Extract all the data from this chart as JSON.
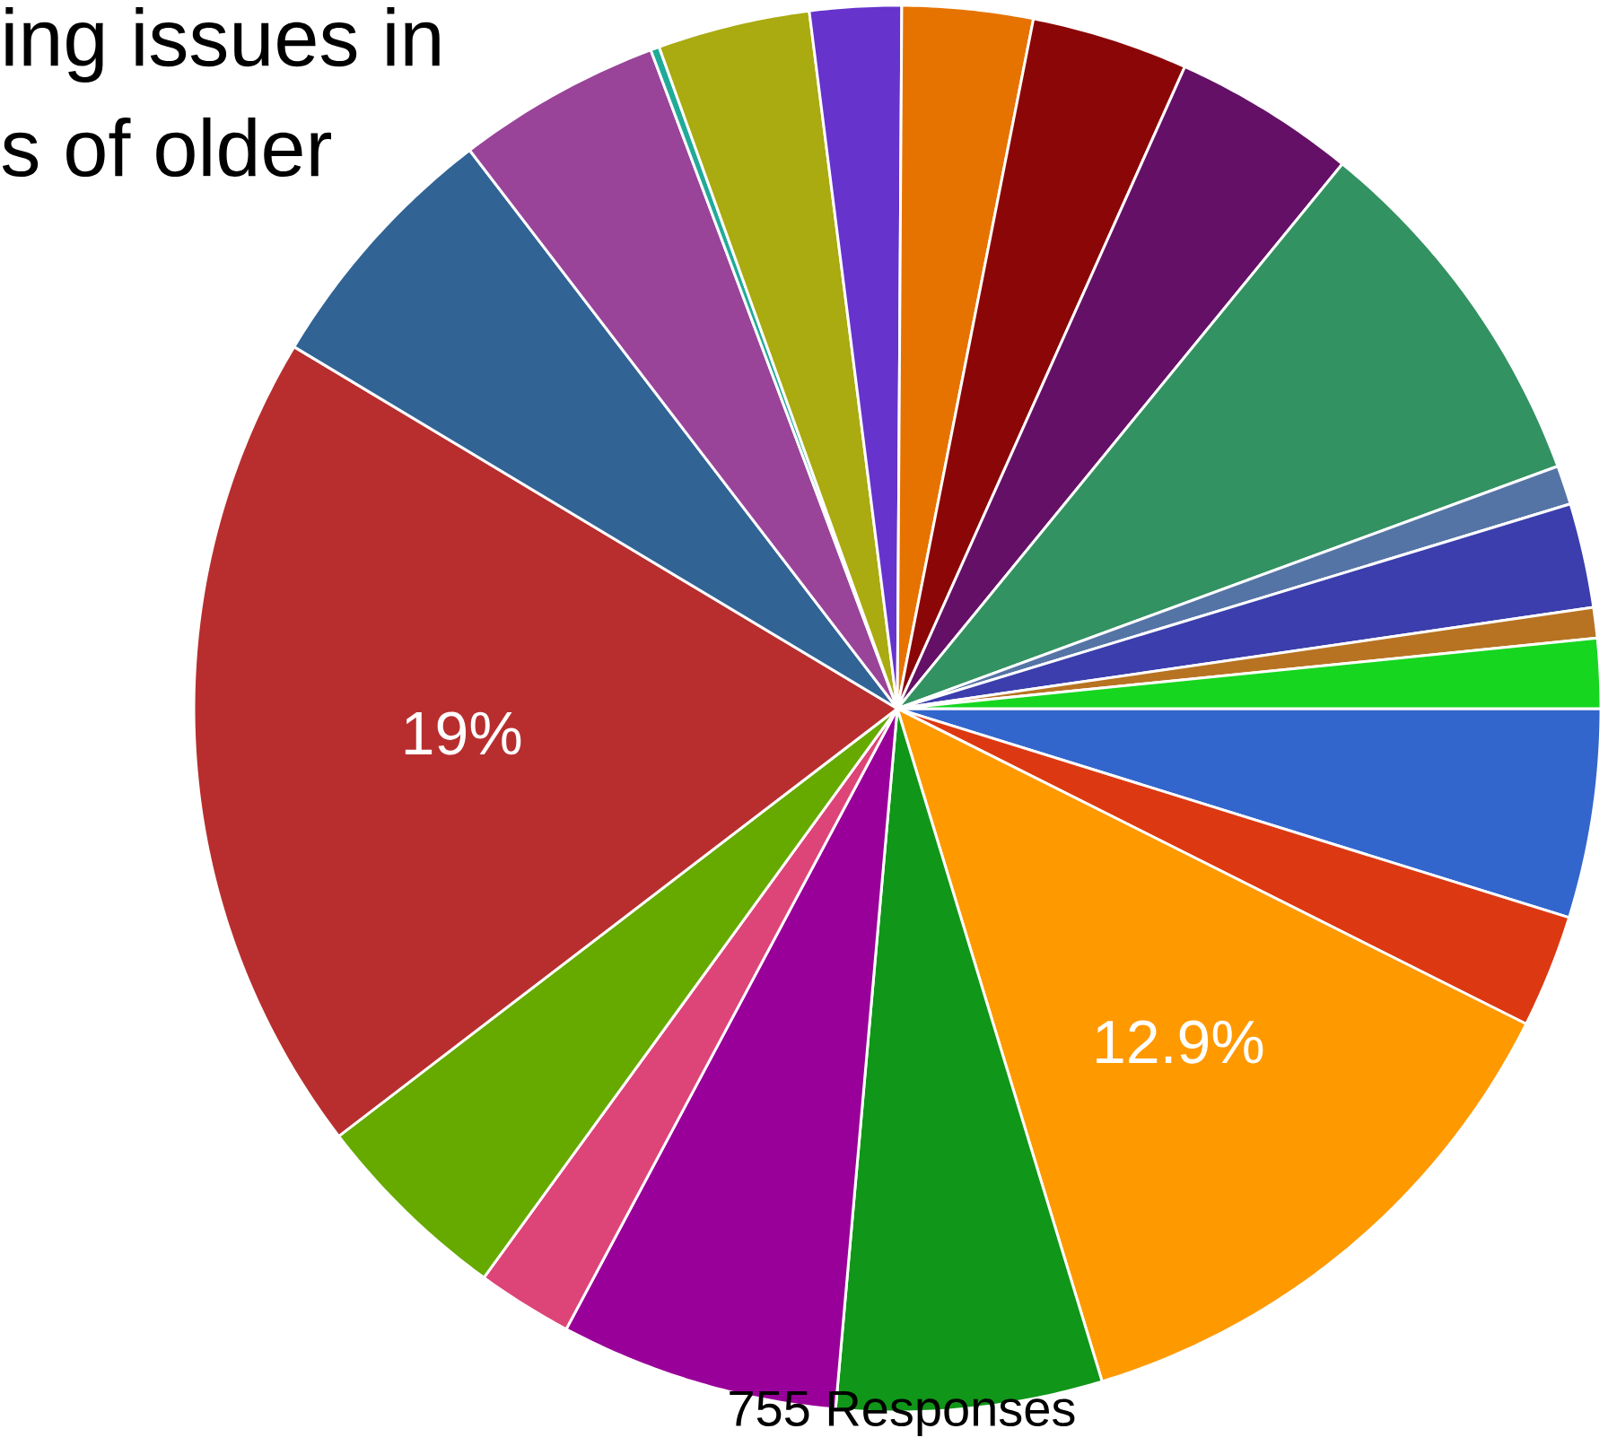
{
  "chart_data": {
    "type": "pie",
    "categories": [
      null,
      null,
      null,
      null,
      null,
      null,
      null,
      null,
      null,
      null,
      null,
      null,
      null,
      null,
      null,
      null,
      null,
      null,
      null,
      null,
      null
    ],
    "values": [
      4.8,
      2.6,
      12.9,
      6.1,
      6.4,
      2.2,
      4.6,
      19,
      6.0,
      4.7,
      0.2,
      3.5,
      2.1,
      3.0,
      3.6,
      4.2,
      8.5,
      0.9,
      2.4,
      0.7,
      1.6
    ],
    "colors": [
      "#3366cc",
      "#dc3912",
      "#ff9900",
      "#109618",
      "#990099",
      "#dd4477",
      "#66aa00",
      "#b82e2e",
      "#316395",
      "#994499",
      "#22aa99",
      "#aaaa11",
      "#6633cc",
      "#e67300",
      "#8b0707",
      "#651067",
      "#329262",
      "#5574a6",
      "#3b3eac",
      "#b77322",
      "#16d620"
    ],
    "value_labels": [
      null,
      null,
      "12.9%",
      null,
      null,
      null,
      null,
      "19%",
      null,
      null,
      null,
      null,
      null,
      null,
      null,
      null,
      null,
      null,
      null,
      null,
      null
    ],
    "annotations": [
      "ing issues in",
      "s of older",
      "755 Responses"
    ]
  }
}
